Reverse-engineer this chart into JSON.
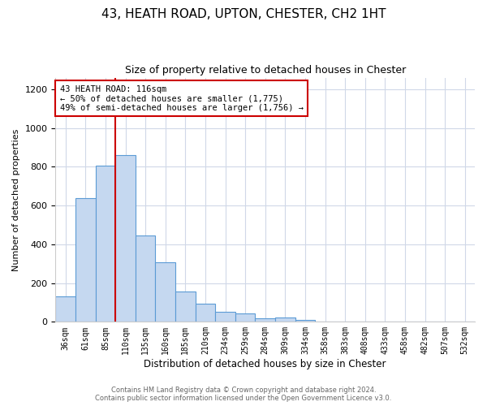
{
  "title_line1": "43, HEATH ROAD, UPTON, CHESTER, CH2 1HT",
  "title_line2": "Size of property relative to detached houses in Chester",
  "xlabel": "Distribution of detached houses by size in Chester",
  "ylabel": "Number of detached properties",
  "bar_labels": [
    "36sqm",
    "61sqm",
    "85sqm",
    "110sqm",
    "135sqm",
    "160sqm",
    "185sqm",
    "210sqm",
    "234sqm",
    "259sqm",
    "284sqm",
    "309sqm",
    "334sqm",
    "358sqm",
    "383sqm",
    "408sqm",
    "433sqm",
    "458sqm",
    "482sqm",
    "507sqm",
    "532sqm"
  ],
  "bar_values": [
    130,
    640,
    805,
    860,
    445,
    308,
    158,
    95,
    52,
    43,
    18,
    22,
    10,
    3,
    0,
    0,
    0,
    3,
    0,
    0,
    3
  ],
  "bar_color": "#c5d8f0",
  "bar_edge_color": "#5b9bd5",
  "marker_line_index": 3,
  "marker_label": "43 HEATH ROAD: 116sqm",
  "annotation_line1": "← 50% of detached houses are smaller (1,775)",
  "annotation_line2": "49% of semi-detached houses are larger (1,756) →",
  "annotation_box_color": "#ffffff",
  "annotation_box_edge": "#cc0000",
  "marker_line_color": "#cc0000",
  "ylim": [
    0,
    1260
  ],
  "yticks": [
    0,
    200,
    400,
    600,
    800,
    1000,
    1200
  ],
  "footer_line1": "Contains HM Land Registry data © Crown copyright and database right 2024.",
  "footer_line2": "Contains public sector information licensed under the Open Government Licence v3.0.",
  "bg_color": "#ffffff",
  "grid_color": "#d0d8e8"
}
